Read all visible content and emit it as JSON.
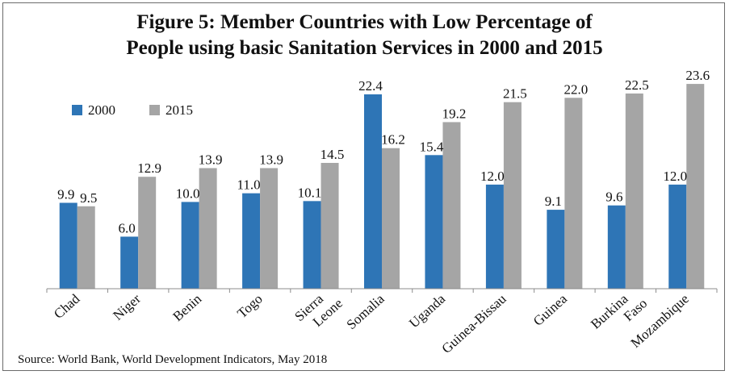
{
  "title_line1": "Figure 5: Member Countries with Low Percentage of",
  "title_line2": "People using basic Sanitation Services in 2000 and 2015",
  "source": "Source: World Bank, World Development Indicators, May 2018",
  "colors": {
    "s2000": "#2e75b6",
    "s2015": "#a5a5a5"
  },
  "chart_data": {
    "type": "bar",
    "title": "Figure 5: Member Countries with Low Percentage of People using basic Sanitation Services in 2000 and 2015",
    "categories": [
      [
        "Chad"
      ],
      [
        "Niger"
      ],
      [
        "Benin"
      ],
      [
        "Togo"
      ],
      [
        "Sierra",
        "Leone"
      ],
      [
        "Somalia"
      ],
      [
        "Uganda"
      ],
      [
        "Guinea-Bissau"
      ],
      [
        "Guinea"
      ],
      [
        "Burkina",
        "Faso"
      ],
      [
        "Mozambique"
      ]
    ],
    "series": [
      {
        "name": "2000",
        "values": [
          9.9,
          6.0,
          10.0,
          11.0,
          10.1,
          22.4,
          15.4,
          12.0,
          9.1,
          9.6,
          12.0
        ]
      },
      {
        "name": "2015",
        "values": [
          9.5,
          12.9,
          13.9,
          13.9,
          14.5,
          16.2,
          19.2,
          21.5,
          22.0,
          22.5,
          23.6
        ]
      }
    ],
    "ylim": [
      0,
      25
    ],
    "grid": false,
    "legend": "top-left"
  }
}
